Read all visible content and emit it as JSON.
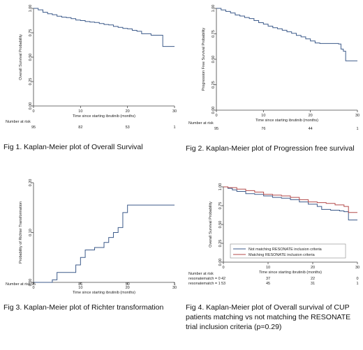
{
  "captions": {
    "fig1": "Fig 1. Kaplan-Meier plot of Overall Survival",
    "fig2": "Fig 2.  Kaplan-Meier plot of Progression free survival",
    "fig3": "Fig 3. Kaplan-Meier plot of Richter transformation",
    "fig4": "Fig 4. Kaplan-Meier plot of Overall survival of CUP patients matching vs not matching the RESONATE trial inclusion criteria (p=0.29)"
  },
  "chart_data": [
    {
      "type": "line",
      "id": "fig1",
      "xlabel": "Time since starting ibrutinib (months)",
      "ylabel": "Overall Survival Probability",
      "xlim": [
        0,
        30
      ],
      "ylim": [
        0,
        1
      ],
      "xticks": [
        "0",
        "10",
        "20",
        "30"
      ],
      "yticks": [
        "0.00",
        "0.25",
        "0.50",
        "0.75",
        "1.00"
      ],
      "colors": [
        "#3c5a8a"
      ],
      "series": [
        {
          "x": [
            0,
            0.5,
            1,
            1.5,
            2,
            3,
            4,
            5,
            6,
            7,
            8,
            9,
            10,
            11,
            12,
            13,
            14,
            15,
            16,
            17,
            18,
            19,
            20,
            21,
            22,
            23,
            25,
            26,
            27,
            27.5,
            30
          ],
          "y": [
            1.0,
            1.0,
            0.985,
            0.985,
            0.96,
            0.945,
            0.935,
            0.92,
            0.91,
            0.905,
            0.895,
            0.88,
            0.875,
            0.865,
            0.86,
            0.855,
            0.845,
            0.835,
            0.83,
            0.815,
            0.805,
            0.795,
            0.79,
            0.775,
            0.765,
            0.74,
            0.725,
            0.725,
            0.725,
            0.61,
            0.61
          ]
        }
      ],
      "risk_table": {
        "label": "Number at risk",
        "rows": [
          {
            "name": "",
            "values": [
              "95",
              "82",
              "53",
              "1"
            ]
          }
        ]
      }
    },
    {
      "type": "line",
      "id": "fig2",
      "xlabel": "Time since starting ibrutinib (months)",
      "ylabel": "Progression Free Survival Probability",
      "xlim": [
        0,
        30
      ],
      "ylim": [
        0,
        1
      ],
      "xticks": [
        "0",
        "10",
        "20",
        "30"
      ],
      "yticks": [
        "0.00",
        "0.25",
        "0.50",
        "0.75",
        "1.00"
      ],
      "colors": [
        "#3c5a8a"
      ],
      "series": [
        {
          "x": [
            0,
            1,
            2,
            3,
            4,
            5,
            6,
            7,
            8,
            9,
            10,
            11,
            12,
            13,
            14,
            15,
            16,
            17,
            18,
            19,
            20,
            21,
            22,
            23,
            24,
            25,
            26,
            26.5,
            27,
            27.5,
            30
          ],
          "y": [
            1.0,
            0.985,
            0.97,
            0.955,
            0.935,
            0.925,
            0.91,
            0.9,
            0.88,
            0.86,
            0.845,
            0.825,
            0.81,
            0.8,
            0.785,
            0.77,
            0.755,
            0.735,
            0.72,
            0.7,
            0.68,
            0.66,
            0.655,
            0.655,
            0.655,
            0.655,
            0.65,
            0.6,
            0.58,
            0.485,
            0.485
          ]
        }
      ],
      "risk_table": {
        "label": "Number at risk",
        "rows": [
          {
            "name": "",
            "values": [
              "95",
              "76",
              "44",
              "1"
            ]
          }
        ]
      }
    },
    {
      "type": "line",
      "id": "fig3",
      "xlabel": "Time since starting ibrutinib (months)",
      "ylabel": "Probability of Richter Transformation",
      "xlim": [
        0,
        30
      ],
      "ylim": [
        0,
        0.2
      ],
      "xticks": [
        "0",
        "10",
        "20",
        "30"
      ],
      "yticks": [
        "0.00",
        "0.10",
        "0.20"
      ],
      "colors": [
        "#3c5a8a"
      ],
      "series": [
        {
          "x": [
            0,
            4,
            5,
            8,
            9,
            10,
            11,
            13,
            15,
            16,
            17,
            18,
            19,
            20,
            30
          ],
          "y": [
            0,
            0.005,
            0.02,
            0.02,
            0.035,
            0.05,
            0.065,
            0.07,
            0.08,
            0.09,
            0.1,
            0.11,
            0.14,
            0.155,
            0.155
          ]
        }
      ],
      "risk_table": {
        "label": "Number at risk",
        "rows": [
          {
            "name": "",
            "values": [
              "95",
              "81",
              "50",
              "1"
            ]
          }
        ]
      }
    },
    {
      "type": "line",
      "id": "fig4",
      "xlabel": "Time since starting ibrutinib (months)",
      "ylabel": "Overall Survival Probability",
      "xlim": [
        0,
        30
      ],
      "ylim": [
        0,
        1
      ],
      "xticks": [
        "0",
        "10",
        "20",
        "30"
      ],
      "yticks": [
        "0.00",
        "0.25",
        "0.50",
        "0.75",
        "1.00"
      ],
      "colors": [
        "#3c5a8a",
        "#b34a4a"
      ],
      "legend": [
        "Not matching RESONATE inclusion criteria",
        "Matching RESONATE inclusion criteria"
      ],
      "series": [
        {
          "name": "Not matching RESONATE inclusion criteria",
          "x": [
            0,
            1,
            2,
            3,
            5,
            7,
            9,
            11,
            13,
            15,
            17,
            19,
            21,
            22,
            24,
            26,
            27,
            28,
            29,
            30
          ],
          "y": [
            1.0,
            0.98,
            0.96,
            0.94,
            0.91,
            0.9,
            0.88,
            0.86,
            0.85,
            0.83,
            0.8,
            0.77,
            0.74,
            0.7,
            0.69,
            0.68,
            0.67,
            0.56,
            0.56,
            0.56
          ]
        },
        {
          "name": "Matching RESONATE inclusion criteria",
          "x": [
            0,
            1,
            3,
            5,
            7,
            9,
            11,
            13,
            15,
            17,
            19,
            21,
            23,
            25,
            27,
            28,
            30
          ],
          "y": [
            1.0,
            0.99,
            0.97,
            0.95,
            0.93,
            0.9,
            0.89,
            0.88,
            0.86,
            0.83,
            0.8,
            0.79,
            0.78,
            0.76,
            0.74,
            0.66,
            0.66
          ]
        }
      ],
      "risk_table": {
        "label": "Number at risk",
        "rows": [
          {
            "name": "resonatematch = 0",
            "values": [
              "42",
              "37",
              "22",
              "0"
            ]
          },
          {
            "name": "resonatematch = 1",
            "values": [
              "53",
              "45",
              "31",
              "1"
            ]
          }
        ]
      }
    }
  ]
}
